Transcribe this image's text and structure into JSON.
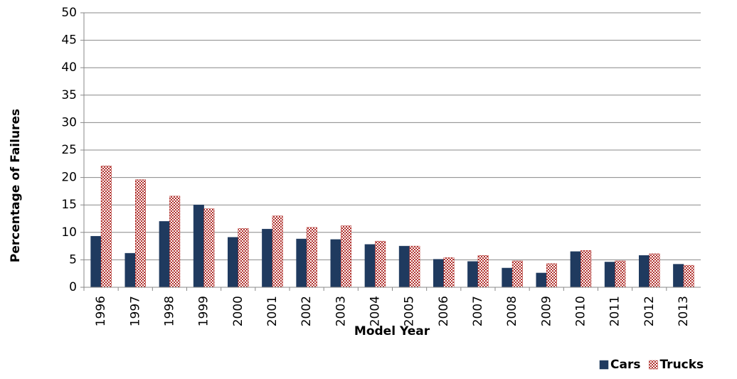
{
  "chart_data": {
    "type": "bar",
    "xlabel": "Model Year",
    "ylabel": "Percentage of Failures",
    "categories": [
      "1996",
      "1997",
      "1998",
      "1999",
      "2000",
      "2001",
      "2002",
      "2003",
      "2004",
      "2005",
      "2006",
      "2007",
      "2008",
      "2009",
      "2010",
      "2011",
      "2012",
      "2013"
    ],
    "series": [
      {
        "name": "Cars",
        "color": "#1f3a5f",
        "values": [
          9.3,
          6.2,
          12,
          15,
          9.1,
          10.6,
          8.8,
          8.7,
          7.8,
          7.5,
          5.1,
          4.7,
          3.5,
          2.6,
          6.5,
          4.6,
          5.8,
          4.2
        ]
      },
      {
        "name": "Trucks",
        "color": "#b0302c",
        "values": [
          22.1,
          19.6,
          16.6,
          14.3,
          10.7,
          13,
          10.9,
          11.2,
          8.4,
          7.5,
          5.4,
          5.8,
          4.8,
          4.3,
          6.7,
          4.8,
          6.1,
          4.0
        ]
      }
    ],
    "ylim": [
      0,
      50
    ],
    "yticks": [
      0,
      5,
      10,
      15,
      20,
      25,
      30,
      35,
      40,
      45,
      50
    ],
    "grid": true,
    "legend": "bottom-right"
  }
}
